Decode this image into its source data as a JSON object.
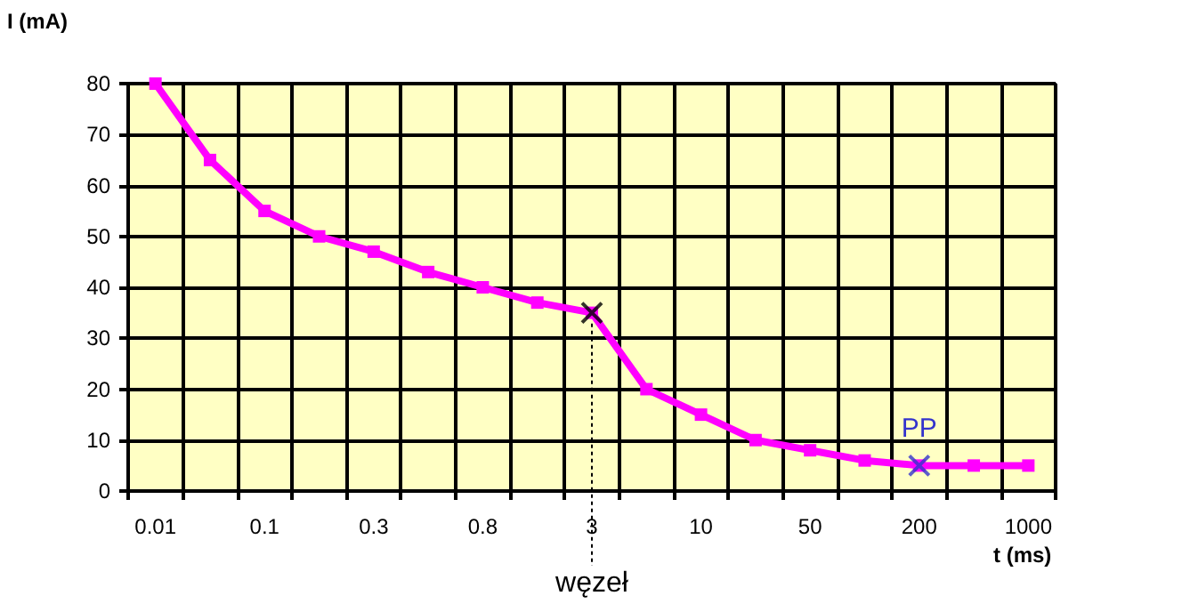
{
  "chart_data": {
    "type": "line",
    "xlabel": "t (ms)",
    "ylabel": "I (mA)",
    "categories": [
      "0.01",
      null,
      "0.1",
      null,
      "0.3",
      null,
      "0.8",
      null,
      "3",
      null,
      "10",
      null,
      "50",
      null,
      "200",
      null,
      "1000"
    ],
    "series": [
      {
        "color": "#ff00ff",
        "marker": "square",
        "values": [
          80,
          65,
          55,
          50,
          47,
          43,
          40,
          37,
          35,
          20,
          15,
          10,
          8,
          6,
          5,
          5,
          5
        ]
      },
      {
        "type": "scatter",
        "marker": "cross",
        "color": "#000000",
        "x": [
          "3"
        ],
        "values": [
          35
        ]
      },
      {
        "type": "scatter",
        "marker": "cross",
        "color": "#3333cc",
        "x": [
          "200"
        ],
        "values": [
          5
        ]
      }
    ],
    "ylim": [
      0,
      80
    ],
    "yticks": [
      0,
      10,
      20,
      30,
      40,
      50,
      60,
      70,
      80
    ],
    "grid": true,
    "annotations": [
      {
        "text": "węzeł",
        "x": "3",
        "y": 35
      },
      {
        "text": "PP",
        "x": "200",
        "y": 5
      }
    ]
  }
}
